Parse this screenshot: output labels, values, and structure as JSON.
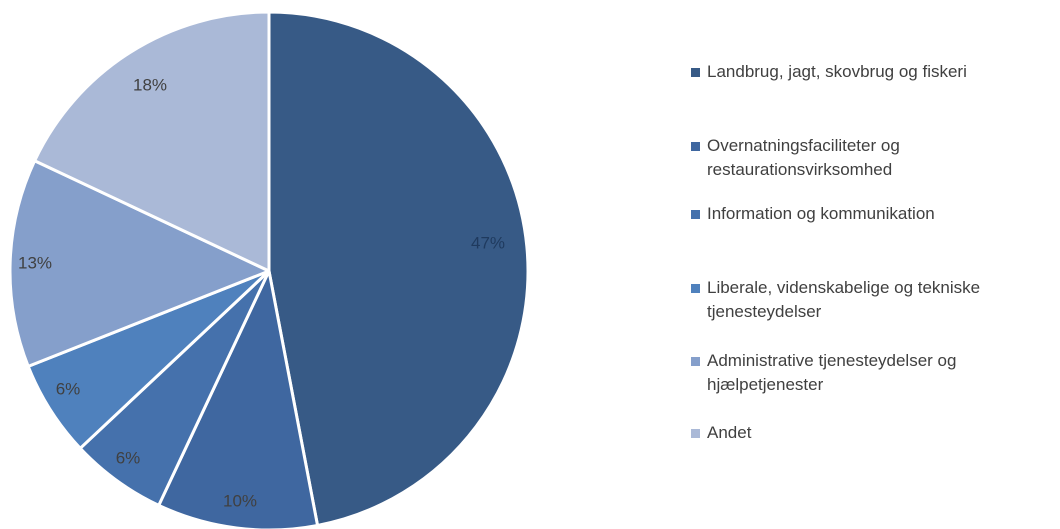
{
  "chart_data": {
    "type": "pie",
    "title": "",
    "legend_position": "right",
    "slices": [
      {
        "name": "Landbrug, jagt, skovbrug og fiskeri",
        "value": 47,
        "label": "47%",
        "color": "#375A86"
      },
      {
        "name": "Overnatningsfaciliteter og restaurationsvirksomhed",
        "value": 10,
        "label": "10%",
        "color": "#3F67A0"
      },
      {
        "name": "Information og kommunikation",
        "value": 6,
        "label": "6%",
        "color": "#4571AC"
      },
      {
        "name": "Liberale, videnskabelige og tekniske tjenesteydelser",
        "value": 6,
        "label": "6%",
        "color": "#4F81BD"
      },
      {
        "name": "Administrative tjenesteydelser og hjælpetjenester",
        "value": 13,
        "label": "13%",
        "color": "#859FCB"
      },
      {
        "name": "Andet",
        "value": 18,
        "label": "18%",
        "color": "#AAB9D7"
      }
    ],
    "label_colors": {
      "Landbrug, jagt, skovbrug og fiskeri": "#1F3A5E",
      "Overnatningsfaciliteter og restaurationsvirksomhed": "#404040",
      "Information og kommunikation": "#404040",
      "Liberale, videnskabelige og tekniske tjenesteydelser": "#404040",
      "Administrative tjenesteydelser og hjælpetjenester": "#404040",
      "Andet": "#404040"
    }
  }
}
